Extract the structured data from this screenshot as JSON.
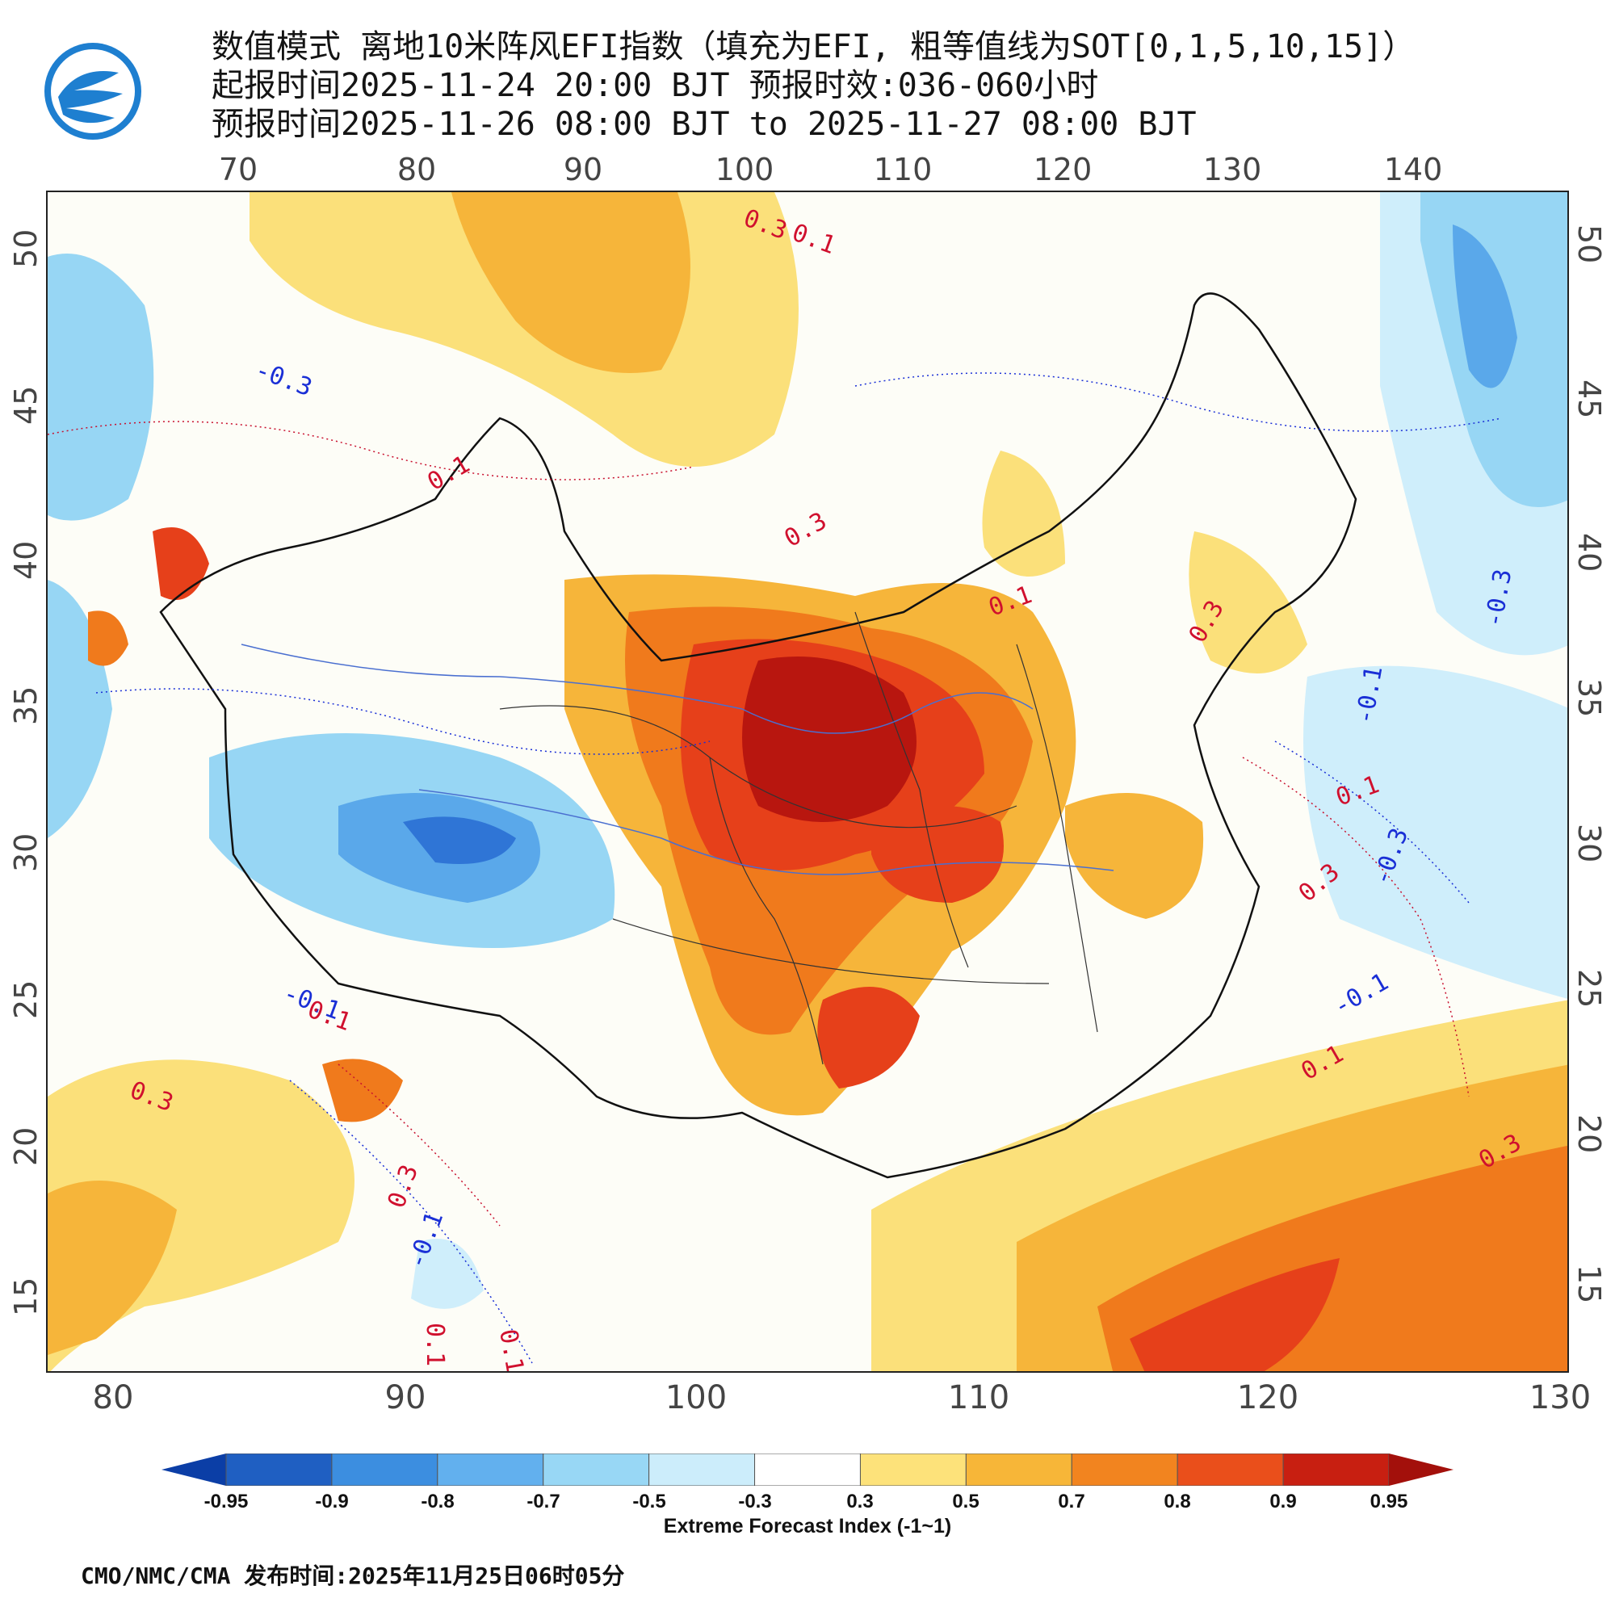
{
  "header": {
    "title_line1": "数值模式 离地10米阵风EFI指数（填充为EFI, 粗等值线为SOT[0,1,5,10,15]）",
    "title_line2": "起报时间2025-11-24 20:00 BJT 预报时效:036-060小时",
    "title_line3": "预报时间2025-11-26 08:00 BJT to 2025-11-27 08:00 BJT"
  },
  "map": {
    "lon_top_labels": [
      "70",
      "80",
      "90",
      "100",
      "110",
      "120",
      "130",
      "140"
    ],
    "lon_bottom_labels": [
      "80",
      "90",
      "100",
      "110",
      "120",
      "130"
    ],
    "lat_labels": [
      "50",
      "45",
      "40",
      "35",
      "30",
      "25",
      "20",
      "15"
    ],
    "contour_labels": [
      {
        "text": "0.3",
        "color": "red"
      },
      {
        "text": "0.1",
        "color": "red"
      },
      {
        "text": "-0.3",
        "color": "blue"
      },
      {
        "text": "0.1",
        "color": "red"
      },
      {
        "text": "0.3",
        "color": "red"
      },
      {
        "text": "0.1",
        "color": "red"
      },
      {
        "text": "0.3",
        "color": "red"
      },
      {
        "text": "-0.3",
        "color": "blue"
      },
      {
        "text": "-0.1",
        "color": "blue"
      },
      {
        "text": "0.1",
        "color": "red"
      },
      {
        "text": "0.3",
        "color": "red"
      },
      {
        "text": "-0.3",
        "color": "blue"
      },
      {
        "text": "-0.1",
        "color": "blue"
      },
      {
        "text": "0.1",
        "color": "red"
      },
      {
        "text": "0.3",
        "color": "red"
      },
      {
        "text": "-0.1",
        "color": "blue"
      },
      {
        "text": "0.1",
        "color": "red"
      },
      {
        "text": "0.3",
        "color": "red"
      },
      {
        "text": "0.1",
        "color": "red"
      },
      {
        "text": "0.3",
        "color": "red"
      },
      {
        "text": "-0.1",
        "color": "blue"
      },
      {
        "text": "0.1",
        "color": "red"
      }
    ],
    "colors": {
      "c1": "#0b3ea6",
      "c2": "#2f75d6",
      "c3": "#5aa8ea",
      "c4": "#97d6f4",
      "c5": "#cfeefb",
      "c6": "#fdfdf7",
      "c7": "#fbe07a",
      "c8": "#f6b53a",
      "c9": "#f07a1c",
      "c10": "#e6401a",
      "c11": "#b8160f"
    }
  },
  "colorbar": {
    "labels": [
      "-0.95",
      "-0.9",
      "-0.8",
      "-0.7",
      "-0.5",
      "-0.3",
      "0.3",
      "0.5",
      "0.7",
      "0.8",
      "0.9",
      "0.95"
    ],
    "colors": [
      "#1f5fc2",
      "#3c8ee0",
      "#62b0ee",
      "#98d7f5",
      "#ccedfb",
      "#ffffff",
      "#fde27a",
      "#f7b638",
      "#f2841f",
      "#ea4f1b",
      "#c81f11"
    ],
    "end_low": "#0b3ea6",
    "end_high": "#a3100b",
    "title": "Extreme Forecast Index (-1~1)"
  },
  "footer": {
    "text": "CMO/NMC/CMA 发布时间:2025年11月25日06时05分"
  }
}
